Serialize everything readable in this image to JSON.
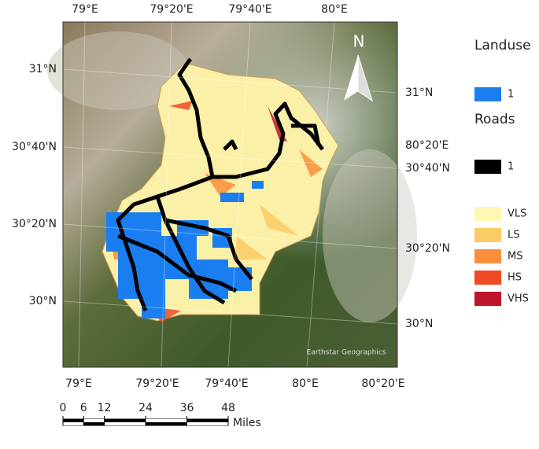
{
  "map": {
    "top_labels": [
      "79°E",
      "79°20'E",
      "79°40'E",
      "80°E"
    ],
    "bottom_labels": [
      "79°E",
      "79°20'E",
      "79°40'E",
      "80°E",
      "80°20'E"
    ],
    "left_labels": [
      "31°N",
      "30°40'N",
      "30°20'N",
      "30°N"
    ],
    "right_labels": [
      "31°N",
      "80°20'E",
      "30°40'N",
      "30°20'N",
      "30°N"
    ],
    "north_label": "N",
    "attribution": "Earthstar Geographics"
  },
  "legend": {
    "landuse_title": "Landuse",
    "landuse_items": [
      {
        "label": "1",
        "color": "#1a7ef0"
      }
    ],
    "roads_title": "Roads",
    "roads_items": [
      {
        "label": "1",
        "color": "#000000"
      }
    ],
    "slope_items": [
      {
        "label": "VLS",
        "color": "#fff7b2"
      },
      {
        "label": "LS",
        "color": "#fbcb66"
      },
      {
        "label": "MS",
        "color": "#f98f3c"
      },
      {
        "label": "HS",
        "color": "#ef4a25"
      },
      {
        "label": "VHS",
        "color": "#c0142a"
      }
    ]
  },
  "scale_bar": {
    "ticks": [
      0,
      6,
      12,
      24,
      36,
      48
    ],
    "unit": "Miles"
  }
}
